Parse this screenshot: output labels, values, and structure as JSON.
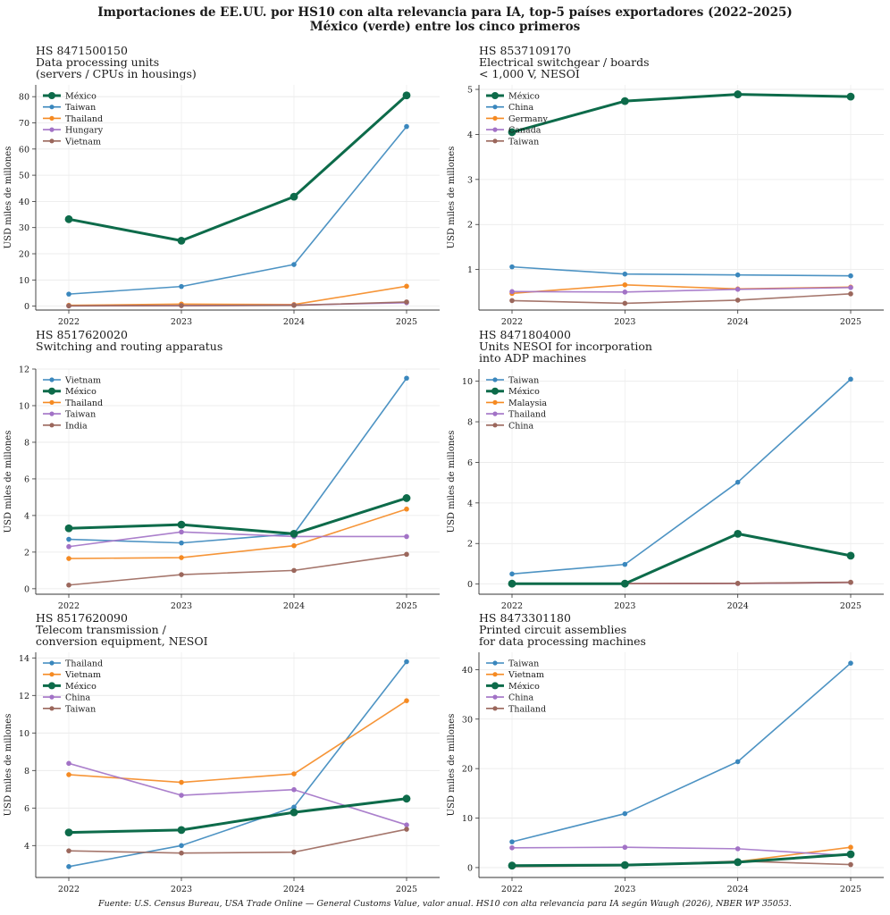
{
  "suptitle": {
    "line1": "Importaciones de EE.UU. por HS10 con alta relevancia para IA, top-5 países exportadores (2022–2025)",
    "line2": "México (verde) entre los cinco primeros"
  },
  "footer": "Fuente: U.S. Census Bureau, USA Trade Online — General Customs Value, valor anual. HS10 con alta relevancia para IA según Waugh (2026), NBER WP 35053.",
  "colors": {
    "Mexico": "#0d6b4a",
    "blue": "#3a87bd",
    "orange": "#f58a22",
    "purple": "#a272c6",
    "brown": "#9b675c"
  },
  "chart_data": [
    {
      "type": "line",
      "title": [
        "HS 8471500150",
        "Data processing units",
        "(servers / CPUs in housings)"
      ],
      "ylabel": "USD miles de millones",
      "x": [
        "2022",
        "2023",
        "2024",
        "2025"
      ],
      "ylim": [
        -1.5,
        84.5
      ],
      "yticks": [
        0,
        10,
        20,
        30,
        40,
        50,
        60,
        70,
        80
      ],
      "legend_position": "upper-left",
      "series": [
        {
          "name": "México",
          "color": "#0d6b4a",
          "values": [
            33.2,
            25.0,
            41.8,
            80.5
          ]
        },
        {
          "name": "Taiwan",
          "color": "#3a87bd",
          "values": [
            4.6,
            7.5,
            15.9,
            68.6
          ]
        },
        {
          "name": "Thailand",
          "color": "#f58a22",
          "values": [
            0.3,
            0.8,
            0.6,
            7.6
          ]
        },
        {
          "name": "Hungary",
          "color": "#a272c6",
          "values": [
            0.1,
            0.2,
            0.4,
            1.3
          ]
        },
        {
          "name": "Vietnam",
          "color": "#9b675c",
          "values": [
            0.1,
            0.2,
            0.3,
            1.6
          ]
        }
      ]
    },
    {
      "type": "line",
      "title": [
        "HS 8537109170",
        "Electrical switchgear / boards",
        "< 1,000 V, NESOI"
      ],
      "ylabel": "USD miles de millones",
      "x": [
        "2022",
        "2023",
        "2024",
        "2025"
      ],
      "ylim": [
        0.1,
        5.1
      ],
      "yticks": [
        1,
        2,
        3,
        4,
        5
      ],
      "legend_position": "upper-left",
      "series": [
        {
          "name": "México",
          "color": "#0d6b4a",
          "values": [
            4.05,
            4.74,
            4.89,
            4.84
          ]
        },
        {
          "name": "China",
          "color": "#3a87bd",
          "values": [
            1.06,
            0.9,
            0.88,
            0.86
          ]
        },
        {
          "name": "Germany",
          "color": "#f58a22",
          "values": [
            0.47,
            0.66,
            0.57,
            0.61
          ]
        },
        {
          "name": "Canada",
          "color": "#a272c6",
          "values": [
            0.51,
            0.5,
            0.56,
            0.6
          ]
        },
        {
          "name": "Taiwan",
          "color": "#9b675c",
          "values": [
            0.31,
            0.25,
            0.32,
            0.46
          ]
        }
      ]
    },
    {
      "type": "line",
      "title": [
        "HS 8517620020",
        "Switching and routing apparatus"
      ],
      "ylabel": "USD miles de millones",
      "x": [
        "2022",
        "2023",
        "2024",
        "2025"
      ],
      "ylim": [
        -0.3,
        12
      ],
      "yticks": [
        0,
        2,
        4,
        6,
        8,
        10,
        12
      ],
      "legend_position": "upper-left",
      "series": [
        {
          "name": "Vietnam",
          "color": "#3a87bd",
          "values": [
            2.7,
            2.5,
            3.0,
            11.5
          ]
        },
        {
          "name": "México",
          "color": "#0d6b4a",
          "values": [
            3.3,
            3.5,
            3.0,
            4.95
          ]
        },
        {
          "name": "Thailand",
          "color": "#f58a22",
          "values": [
            1.65,
            1.7,
            2.35,
            4.35
          ]
        },
        {
          "name": "Taiwan",
          "color": "#a272c6",
          "values": [
            2.3,
            3.1,
            2.85,
            2.85
          ]
        },
        {
          "name": "India",
          "color": "#9b675c",
          "values": [
            0.2,
            0.77,
            1.0,
            1.88
          ]
        }
      ]
    },
    {
      "type": "line",
      "title": [
        "HS 8471804000",
        "Units NESOI for incorporation",
        "into ADP machines"
      ],
      "ylabel": "USD miles de millones",
      "x": [
        "2022",
        "2023",
        "2024",
        "2025"
      ],
      "ylim": [
        -0.5,
        10.6
      ],
      "yticks": [
        0,
        2,
        4,
        6,
        8,
        10
      ],
      "legend_position": "upper-left",
      "series": [
        {
          "name": "Taiwan",
          "color": "#3a87bd",
          "values": [
            0.5,
            0.97,
            5.02,
            10.1
          ]
        },
        {
          "name": "México",
          "color": "#0d6b4a",
          "values": [
            0.02,
            0.02,
            2.48,
            1.4
          ]
        },
        {
          "name": "Malaysia",
          "color": "#f58a22",
          "values": [
            0.02,
            0.02,
            0.03,
            0.08
          ]
        },
        {
          "name": "Thailand",
          "color": "#a272c6",
          "values": [
            0.02,
            0.02,
            0.03,
            0.08
          ]
        },
        {
          "name": "China",
          "color": "#9b675c",
          "values": [
            0.02,
            0.02,
            0.04,
            0.09
          ]
        }
      ]
    },
    {
      "type": "line",
      "title": [
        "HS 8517620090",
        "Telecom transmission /",
        "conversion equipment, NESOI"
      ],
      "ylabel": "USD miles de millones",
      "x": [
        "2022",
        "2023",
        "2024",
        "2025"
      ],
      "ylim": [
        2.3,
        14.3
      ],
      "yticks": [
        4,
        6,
        8,
        10,
        12,
        14
      ],
      "legend_position": "upper-left",
      "series": [
        {
          "name": "Thailand",
          "color": "#3a87bd",
          "values": [
            2.88,
            4.0,
            6.05,
            13.8
          ]
        },
        {
          "name": "Vietnam",
          "color": "#f58a22",
          "values": [
            7.78,
            7.37,
            7.82,
            11.72
          ]
        },
        {
          "name": "México",
          "color": "#0d6b4a",
          "values": [
            4.7,
            4.83,
            5.77,
            6.5
          ]
        },
        {
          "name": "China",
          "color": "#a272c6",
          "values": [
            8.38,
            6.68,
            6.98,
            5.1
          ]
        },
        {
          "name": "Taiwan",
          "color": "#9b675c",
          "values": [
            3.72,
            3.6,
            3.65,
            4.87
          ]
        }
      ]
    },
    {
      "type": "line",
      "title": [
        "HS 8473301180",
        "Printed circuit assemblies",
        "for data processing machines"
      ],
      "ylabel": "USD miles de millones",
      "x": [
        "2022",
        "2023",
        "2024",
        "2025"
      ],
      "ylim": [
        -2,
        43.5
      ],
      "yticks": [
        0,
        10,
        20,
        30,
        40
      ],
      "legend_position": "upper-left",
      "series": [
        {
          "name": "Taiwan",
          "color": "#3a87bd",
          "values": [
            5.2,
            10.9,
            21.4,
            41.3
          ]
        },
        {
          "name": "Vietnam",
          "color": "#f58a22",
          "values": [
            0.3,
            0.5,
            1.2,
            4.1
          ]
        },
        {
          "name": "México",
          "color": "#0d6b4a",
          "values": [
            0.4,
            0.5,
            1.1,
            2.7
          ]
        },
        {
          "name": "China",
          "color": "#a272c6",
          "values": [
            4.0,
            4.1,
            3.8,
            2.4
          ]
        },
        {
          "name": "Thailand",
          "color": "#9b675c",
          "values": [
            0.2,
            0.4,
            1.3,
            0.6
          ]
        }
      ]
    }
  ]
}
